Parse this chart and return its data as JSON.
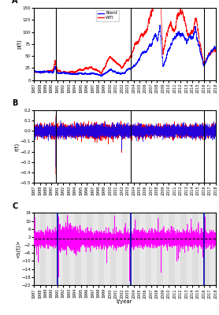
{
  "panel_labels": [
    "A",
    "B",
    "C"
  ],
  "year_start": 1987,
  "year_end": 2018,
  "vertical_lines_AB": [
    1990.75,
    2003.5,
    2016.0
  ],
  "vertical_lines_C": [
    1991.0,
    2003.5,
    2016.0
  ],
  "ylabel_A": "p(t)",
  "ylabel_B": "r(t)",
  "ylabel_C": "<s(t)>",
  "xlabel": "t/year",
  "ylim_A": [
    0,
    150
  ],
  "ylim_B": [
    -0.5,
    0.2
  ],
  "ylim_C": [
    -22,
    14
  ],
  "yticks_A": [
    0,
    25,
    50,
    75,
    100,
    125,
    150
  ],
  "yticks_B": [
    -0.5,
    -0.4,
    -0.3,
    -0.2,
    -0.1,
    0.0,
    0.1,
    0.2
  ],
  "yticks_C": [
    -22,
    -18,
    -14,
    -10,
    -6,
    -2,
    2,
    6,
    10,
    14
  ],
  "color_brent": "#0000FF",
  "color_wti": "#FF0000",
  "color_C": "#FF00FF",
  "color_vline_AB": "#000000",
  "color_vline_C": "#0000AA",
  "color_hline_C": "#000000",
  "hline_C_val": 1.0,
  "bg_color_C_light": "#E8E8E8",
  "bg_color_C_dark": "#C8C8C8",
  "legend_brent": "Brent",
  "legend_wti": "WTI"
}
